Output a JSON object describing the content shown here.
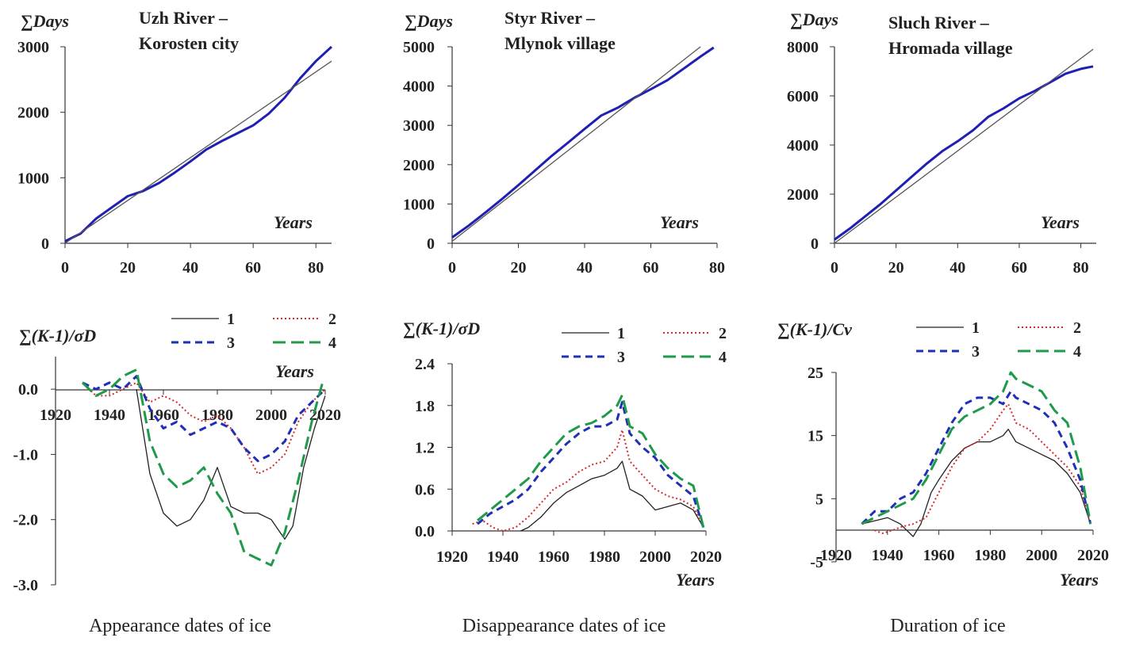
{
  "colors": {
    "cumulative": "#1f1fb4",
    "trend": "#555555",
    "series1": "#222222",
    "series2": "#d62b2b",
    "series3": "#1f2fb8",
    "series4": "#1f9a4a"
  },
  "captions": [
    "Appearance dates of ice",
    "Disappearance dates of ice",
    "Duration of ice"
  ],
  "chart_data": [
    {
      "type": "line",
      "title": [
        "Uzh River –",
        "Korosten city"
      ],
      "ylabel": "∑Days",
      "xlabel": "Years",
      "xlim": [
        0,
        85
      ],
      "ylim": [
        0,
        3000
      ],
      "xticks": [
        "0",
        "20",
        "40",
        "60",
        "80"
      ],
      "yticks": [
        "0",
        "1000",
        "2000",
        "3000"
      ],
      "series": [
        {
          "role": "cumulative",
          "x": [
            0,
            5,
            10,
            15,
            20,
            25,
            30,
            35,
            40,
            45,
            50,
            55,
            60,
            65,
            70,
            75,
            80,
            85
          ],
          "y": [
            30,
            150,
            380,
            550,
            720,
            800,
            920,
            1080,
            1250,
            1430,
            1560,
            1680,
            1800,
            1980,
            2220,
            2520,
            2780,
            3000
          ]
        },
        {
          "role": "trend",
          "x": [
            0,
            85
          ],
          "y": [
            0,
            2780
          ]
        }
      ]
    },
    {
      "type": "line",
      "title": [
        "Styr River –",
        "Mlynok village"
      ],
      "ylabel": "∑Days",
      "xlabel": "Years",
      "xlim": [
        0,
        80
      ],
      "ylim": [
        0,
        5000
      ],
      "xticks": [
        "0",
        "20",
        "40",
        "60",
        "80"
      ],
      "yticks": [
        "0",
        "1000",
        "2000",
        "3000",
        "4000",
        "5000"
      ],
      "series": [
        {
          "role": "cumulative",
          "x": [
            0,
            5,
            10,
            15,
            20,
            25,
            30,
            35,
            40,
            45,
            50,
            55,
            60,
            65,
            70,
            75,
            79
          ],
          "y": [
            150,
            450,
            780,
            1120,
            1480,
            1850,
            2220,
            2560,
            2910,
            3250,
            3450,
            3700,
            3920,
            4150,
            4450,
            4750,
            4980
          ]
        },
        {
          "role": "trend",
          "x": [
            0,
            75
          ],
          "y": [
            50,
            5000
          ]
        }
      ]
    },
    {
      "type": "line",
      "title": [
        "Sluch River –",
        "Hromada village"
      ],
      "ylabel": "∑Days",
      "xlabel": "Years",
      "xlim": [
        0,
        85
      ],
      "ylim": [
        0,
        8000
      ],
      "xticks": [
        "0",
        "20",
        "40",
        "60",
        "80"
      ],
      "yticks": [
        "0",
        "2000",
        "4000",
        "6000",
        "8000"
      ],
      "series": [
        {
          "role": "cumulative",
          "x": [
            0,
            5,
            10,
            15,
            20,
            25,
            30,
            35,
            40,
            45,
            50,
            55,
            60,
            65,
            70,
            75,
            80,
            84
          ],
          "y": [
            150,
            600,
            1100,
            1600,
            2150,
            2700,
            3250,
            3750,
            4150,
            4600,
            5150,
            5500,
            5900,
            6200,
            6550,
            6900,
            7100,
            7200
          ]
        },
        {
          "role": "trend",
          "x": [
            0,
            84
          ],
          "y": [
            0,
            7900
          ]
        }
      ]
    },
    {
      "type": "line",
      "ylabel": "∑(K-1)/σD",
      "xlabel": "Years",
      "xlim": [
        1920,
        2020
      ],
      "ylim": [
        -3.0,
        0.5
      ],
      "xticks": [
        "1920",
        "1940",
        "1960",
        "1980",
        "2000",
        "2020"
      ],
      "yticks": [
        "0.0",
        "-1.0",
        "-2.0",
        "-3.0"
      ],
      "legend": [
        "1",
        "2",
        "3",
        "4"
      ],
      "series": [
        {
          "name": "1",
          "x": [
            1950,
            1955,
            1960,
            1965,
            1970,
            1975,
            1980,
            1985,
            1990,
            1995,
            2000,
            2005,
            2008,
            2012,
            2016,
            2020
          ],
          "y": [
            0.0,
            -1.3,
            -1.9,
            -2.1,
            -2.0,
            -1.7,
            -1.2,
            -1.8,
            -1.9,
            -1.9,
            -2.0,
            -2.3,
            -2.1,
            -1.2,
            -0.6,
            -0.1
          ]
        },
        {
          "name": "2",
          "x": [
            1930,
            1935,
            1940,
            1945,
            1950,
            1955,
            1960,
            1965,
            1970,
            1975,
            1980,
            1985,
            1990,
            1995,
            2000,
            2005,
            2010,
            2015,
            2020
          ],
          "y": [
            0.1,
            -0.1,
            -0.1,
            0.0,
            0.1,
            -0.2,
            -0.1,
            -0.2,
            -0.4,
            -0.5,
            -0.4,
            -0.6,
            -0.9,
            -1.3,
            -1.2,
            -1.0,
            -0.5,
            -0.2,
            0.0
          ]
        },
        {
          "name": "3",
          "x": [
            1930,
            1935,
            1940,
            1945,
            1950,
            1955,
            1960,
            1965,
            1970,
            1975,
            1980,
            1985,
            1990,
            1995,
            2000,
            2005,
            2010,
            2015,
            2020
          ],
          "y": [
            0.1,
            0.0,
            0.1,
            0.0,
            0.2,
            -0.3,
            -0.6,
            -0.5,
            -0.7,
            -0.6,
            -0.5,
            -0.6,
            -0.9,
            -1.1,
            -1.0,
            -0.8,
            -0.4,
            -0.2,
            0.0
          ]
        },
        {
          "name": "4",
          "x": [
            1930,
            1935,
            1940,
            1945,
            1950,
            1955,
            1960,
            1965,
            1970,
            1975,
            1980,
            1985,
            1990,
            1995,
            2000,
            2005,
            2010,
            2015,
            2019
          ],
          "y": [
            0.1,
            -0.1,
            0.0,
            0.2,
            0.3,
            -0.8,
            -1.3,
            -1.5,
            -1.4,
            -1.2,
            -1.6,
            -1.9,
            -2.5,
            -2.6,
            -2.7,
            -2.2,
            -1.4,
            -0.5,
            0.1
          ]
        }
      ]
    },
    {
      "type": "line",
      "ylabel": "∑(K-1)/σD",
      "xlabel": "Years",
      "xlim": [
        1920,
        2020
      ],
      "ylim": [
        0,
        2.4
      ],
      "xticks": [
        "1920",
        "1940",
        "1960",
        "1980",
        "2000",
        "2020"
      ],
      "yticks": [
        "0.0",
        "0.6",
        "1.2",
        "1.8",
        "2.4"
      ],
      "legend": [
        "1",
        "2",
        "3",
        "4"
      ],
      "series": [
        {
          "name": "1",
          "x": [
            1947,
            1950,
            1955,
            1960,
            1965,
            1970,
            1975,
            1980,
            1985,
            1987,
            1990,
            1995,
            2000,
            2005,
            2010,
            2015,
            2019
          ],
          "y": [
            0.0,
            0.05,
            0.2,
            0.4,
            0.55,
            0.65,
            0.75,
            0.8,
            0.9,
            1.0,
            0.6,
            0.5,
            0.3,
            0.35,
            0.4,
            0.3,
            0.05
          ]
        },
        {
          "name": "2",
          "x": [
            1928,
            1932,
            1936,
            1940,
            1945,
            1950,
            1955,
            1960,
            1965,
            1970,
            1975,
            1980,
            1985,
            1987,
            1990,
            1995,
            2000,
            2005,
            2010,
            2015,
            2019
          ],
          "y": [
            0.1,
            0.15,
            0.05,
            0.0,
            0.05,
            0.2,
            0.4,
            0.6,
            0.7,
            0.85,
            0.95,
            1.0,
            1.2,
            1.45,
            1.0,
            0.8,
            0.6,
            0.5,
            0.45,
            0.35,
            0.05
          ]
        },
        {
          "name": "3",
          "x": [
            1930,
            1935,
            1940,
            1945,
            1950,
            1955,
            1960,
            1965,
            1970,
            1975,
            1980,
            1985,
            1987,
            1990,
            1995,
            2000,
            2005,
            2010,
            2015,
            2019
          ],
          "y": [
            0.1,
            0.25,
            0.35,
            0.45,
            0.6,
            0.85,
            1.05,
            1.25,
            1.4,
            1.5,
            1.5,
            1.6,
            1.85,
            1.4,
            1.2,
            1.05,
            0.8,
            0.65,
            0.5,
            0.05
          ]
        },
        {
          "name": "4",
          "x": [
            1930,
            1935,
            1940,
            1945,
            1950,
            1955,
            1960,
            1965,
            1970,
            1975,
            1980,
            1985,
            1987,
            1990,
            1995,
            2000,
            2005,
            2010,
            2015,
            2019
          ],
          "y": [
            0.15,
            0.3,
            0.45,
            0.6,
            0.75,
            1.0,
            1.2,
            1.4,
            1.5,
            1.55,
            1.65,
            1.8,
            1.95,
            1.5,
            1.4,
            1.1,
            0.9,
            0.75,
            0.65,
            0.05
          ]
        }
      ]
    },
    {
      "type": "line",
      "ylabel": "∑(K-1)/Cv",
      "xlabel": "Years",
      "xlim": [
        1920,
        2020
      ],
      "ylim": [
        -5,
        25
      ],
      "xticks": [
        "1920",
        "1940",
        "1960",
        "1980",
        "2000",
        "2020"
      ],
      "yticks": [
        "25",
        "15",
        "5",
        "-5"
      ],
      "legend": [
        "1",
        "2",
        "3",
        "4"
      ],
      "series": [
        {
          "name": "1",
          "x": [
            1930,
            1935,
            1940,
            1945,
            1950,
            1953,
            1957,
            1960,
            1965,
            1970,
            1975,
            1980,
            1985,
            1987,
            1990,
            1995,
            2000,
            2005,
            2010,
            2015,
            2019
          ],
          "y": [
            1,
            1.5,
            2,
            1,
            -1,
            1,
            6,
            8,
            11,
            13,
            14,
            14,
            15,
            16,
            14,
            13,
            12,
            11,
            9,
            6,
            1
          ]
        },
        {
          "name": "2",
          "x": [
            1935,
            1938,
            1942,
            1945,
            1950,
            1955,
            1960,
            1965,
            1970,
            1975,
            1980,
            1985,
            1987,
            1990,
            1995,
            2000,
            2005,
            2010,
            2015,
            2019
          ],
          "y": [
            0,
            -0.5,
            0,
            0.5,
            1,
            2,
            6,
            10,
            13,
            14,
            16,
            19,
            20,
            17,
            16,
            14,
            12,
            10,
            7,
            1
          ]
        },
        {
          "name": "3",
          "x": [
            1930,
            1935,
            1940,
            1945,
            1950,
            1955,
            1960,
            1965,
            1970,
            1975,
            1980,
            1985,
            1988,
            1990,
            1995,
            2000,
            2005,
            2010,
            2015,
            2019
          ],
          "y": [
            1,
            3,
            3,
            5,
            6,
            9,
            13,
            17,
            20,
            21,
            21,
            20,
            22,
            21,
            20,
            19,
            17,
            13,
            8,
            1
          ]
        },
        {
          "name": "4",
          "x": [
            1930,
            1935,
            1940,
            1945,
            1950,
            1955,
            1960,
            1965,
            1970,
            1975,
            1980,
            1985,
            1988,
            1990,
            1995,
            2000,
            2005,
            2010,
            2015,
            2019
          ],
          "y": [
            1,
            2,
            3,
            4,
            5,
            8,
            12,
            16,
            18,
            19,
            20,
            22,
            25,
            24,
            23,
            22,
            19,
            17,
            10,
            1
          ]
        }
      ]
    }
  ]
}
